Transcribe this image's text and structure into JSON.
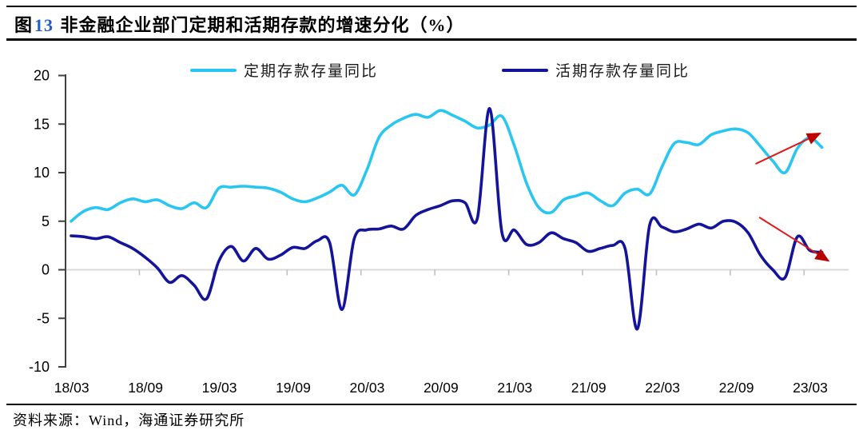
{
  "header": {
    "figure_prefix": "图",
    "figure_number": "13",
    "title": " 非金融企业部门定期和活期存款的增速分化（%）",
    "figure_number_color": "#1E5EC8"
  },
  "footer": {
    "source": "资料来源：Wind，海通证券研究所"
  },
  "chart_data": {
    "type": "line",
    "smooth": true,
    "grid": "horizontal zero line only",
    "legend_position": "top",
    "ylim": [
      -10,
      20
    ],
    "yticks": [
      20,
      15,
      10,
      5,
      0,
      -5,
      -10
    ],
    "xtick_labels": [
      "18/03",
      "18/09",
      "19/03",
      "19/09",
      "20/03",
      "20/09",
      "21/03",
      "21/09",
      "22/03",
      "22/09",
      "23/03"
    ],
    "x": [
      "2018/03",
      "2018/04",
      "2018/05",
      "2018/06",
      "2018/07",
      "2018/08",
      "2018/09",
      "2018/10",
      "2018/11",
      "2018/12",
      "2019/01",
      "2019/02",
      "2019/03",
      "2019/04",
      "2019/05",
      "2019/06",
      "2019/07",
      "2019/08",
      "2019/09",
      "2019/10",
      "2019/11",
      "2019/12",
      "2020/01",
      "2020/02",
      "2020/03",
      "2020/04",
      "2020/05",
      "2020/06",
      "2020/07",
      "2020/08",
      "2020/09",
      "2020/10",
      "2020/11",
      "2020/12",
      "2021/01",
      "2021/02",
      "2021/03",
      "2021/04",
      "2021/05",
      "2021/06",
      "2021/07",
      "2021/08",
      "2021/09",
      "2021/10",
      "2021/11",
      "2021/12",
      "2022/01",
      "2022/02",
      "2022/03",
      "2022/04",
      "2022/05",
      "2022/06",
      "2022/07",
      "2022/08",
      "2022/09",
      "2022/10",
      "2022/11",
      "2022/12",
      "2023/01",
      "2023/02",
      "2023/03",
      "2023/04"
    ],
    "series": [
      {
        "name": "定期存款存量同比",
        "color": "#2AC6F2",
        "values": [
          5.0,
          6.0,
          6.4,
          6.2,
          6.9,
          7.3,
          7.0,
          7.2,
          6.6,
          6.3,
          6.9,
          6.4,
          8.4,
          8.5,
          8.6,
          8.5,
          8.4,
          8.0,
          7.3,
          7.0,
          7.4,
          8.0,
          8.7,
          7.7,
          10.2,
          13.6,
          14.9,
          15.6,
          16.0,
          15.7,
          16.4,
          15.9,
          15.3,
          14.6,
          14.9,
          15.8,
          12.8,
          8.9,
          6.4,
          5.9,
          7.2,
          7.6,
          7.9,
          7.1,
          6.6,
          7.9,
          8.3,
          7.8,
          10.6,
          13.0,
          13.1,
          12.9,
          13.9,
          14.3,
          14.5,
          14.1,
          12.7,
          11.2,
          10.0,
          12.5,
          13.6,
          12.6
        ]
      },
      {
        "name": "活期存款存量同比",
        "color": "#14149B",
        "values": [
          3.5,
          3.4,
          3.2,
          3.4,
          2.8,
          2.2,
          1.3,
          0.2,
          -1.3,
          -0.6,
          -1.6,
          -3.0,
          0.9,
          2.4,
          0.9,
          2.2,
          1.1,
          1.5,
          2.3,
          2.2,
          3.0,
          2.8,
          -4.1,
          3.2,
          4.1,
          4.2,
          4.5,
          4.2,
          5.6,
          6.2,
          6.6,
          7.1,
          6.9,
          5.3,
          16.6,
          3.8,
          4.1,
          2.6,
          2.8,
          3.8,
          3.2,
          2.8,
          1.9,
          2.2,
          2.5,
          2.2,
          -6.1,
          4.6,
          4.4,
          3.9,
          4.2,
          4.7,
          4.3,
          5.0,
          4.9,
          3.8,
          1.5,
          0.0,
          -0.8,
          3.4,
          2.0,
          1.8
        ]
      }
    ],
    "annotations": [
      {
        "type": "trend-arrow",
        "target": "定期存款存量同比",
        "direction": "up",
        "line_color": "#E01818",
        "head_color": "#BB0000",
        "from": {
          "x_index": 55.6,
          "value": 10.9
        },
        "to": {
          "x_index": 60.6,
          "value": 13.9
        }
      },
      {
        "type": "trend-arrow",
        "target": "活期存款存量同比",
        "direction": "down",
        "line_color": "#E01818",
        "head_color": "#BB0000",
        "from": {
          "x_index": 55.9,
          "value": 5.4
        },
        "to": {
          "x_index": 61.3,
          "value": 1.1
        }
      }
    ],
    "axis_colors": {
      "y_axis": "#404040",
      "zero_line": "#D9D9D9",
      "x_ticks": "#BFBFBF",
      "labels": "#000000"
    }
  }
}
